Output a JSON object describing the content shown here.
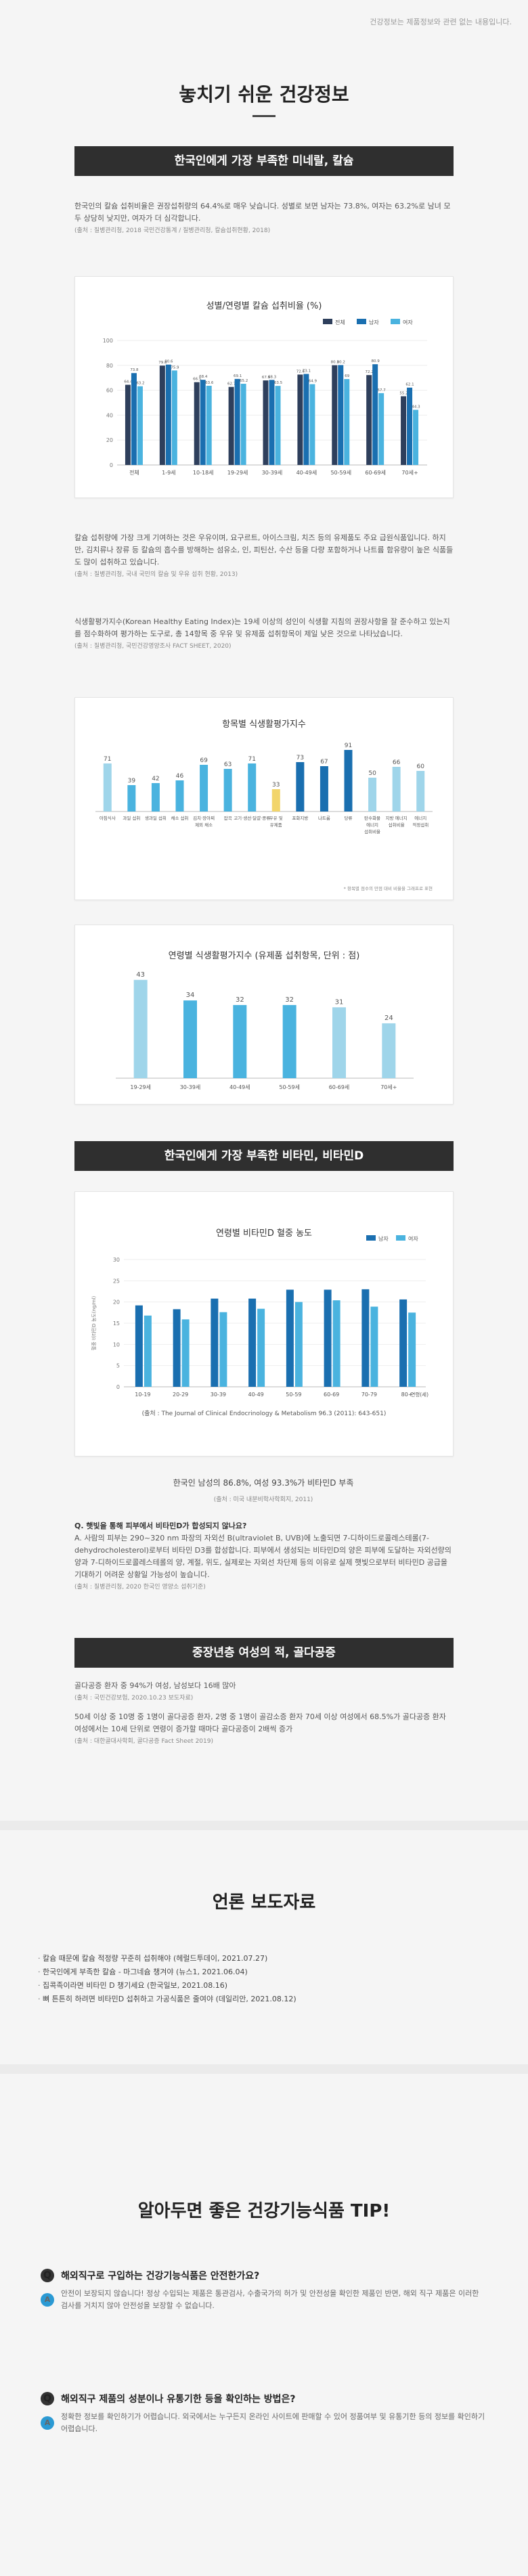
{
  "top_note": "건강정보는 제품정보와 관련 없는 내용입니다.",
  "main_title": "놓치기 쉬운 건강정보",
  "section1": {
    "banner": "한국인에게 가장 부족한 미네랄, 칼슘",
    "p1": "한국인의 칼슘 섭취비율은 권장섭취량의 64.4%로 매우 낮습니다. 성별로 보면 남자는 73.8%, 여자는 63.2%로 남녀 모두 상당히 낮지만, 여자가 더 심각합니다.",
    "p1_src": "(출처 : 질병관리청, 2018 국민건강통계 / 질병관리청, 칼슘섭취현황, 2018)",
    "p2": "칼슘 섭취량에 가장 크게 기여하는 것은 우유이며, 요구르트, 아이스크림, 치즈 등의 유제품도 주요 급원식품입니다. 하지만, 김치류나 장류 등 칼슘의 흡수를 방해하는 섬유소, 인, 피틴산, 수산 등을 다량 포함하거나 나트륨 함유량이 높은 식품들도 많이 섭취하고 있습니다.",
    "p2_src": "(출처 : 질병관리청, 국내 국민의 칼슘 및 우유 섭취 현황, 2013)",
    "p3": "식생활평가지수(Korean Healthy Eating Index)는 19세 이상의 성인이 식생활 지침의 권장사항을 잘 준수하고 있는지를 점수화하여 평가하는 도구로, 총 14항목 중 우유 및 유제품 섭취항목이 제일 낮은 것으로 나타났습니다.",
    "p3_src": "(출처 : 질병관리청, 국민건강영양조사 FACT SHEET, 2020)"
  },
  "chart1": {
    "type": "bar",
    "title": "성별/연령별 칼슘 섭취비율 (%)",
    "categories": [
      "전체",
      "1-9세",
      "10-18세",
      "19-29세",
      "30-39세",
      "40-49세",
      "50-59세",
      "60-69세",
      "70세+"
    ],
    "series": [
      {
        "name": "전체",
        "color": "#2e3f5c",
        "values": [
          64.4,
          79.8,
          66.5,
          62.7,
          67.9,
          72.6,
          80.1,
          72.2,
          55.2
        ]
      },
      {
        "name": "남자",
        "color": "#1a6fb0",
        "values": [
          73.8,
          80.6,
          68.4,
          69.1,
          68.3,
          73.1,
          80.2,
          80.9,
          62.1
        ]
      },
      {
        "name": "여자",
        "color": "#4ab3df",
        "values": [
          63.2,
          75.9,
          63.6,
          65.2,
          63.5,
          64.9,
          69.0,
          57.7,
          44.3
        ]
      }
    ],
    "ylim": [
      0,
      100
    ],
    "yticks": [
      0,
      20,
      40,
      60,
      80,
      100
    ]
  },
  "chart2": {
    "type": "bar",
    "title": "항목별 식생활평가지수",
    "categories": [
      "아침식사",
      "과일 섭취",
      "생과일 섭취",
      "채소 섭취",
      "김치·장아찌 제외 채소",
      "잡곡",
      "고기·생선·달걀·콩류",
      "우유 및 유제품",
      "포화지방",
      "나트륨",
      "당류",
      "탄수화물 에너지 섭취비율",
      "지방 에너지 섭취비율",
      "에너지 적정섭취"
    ],
    "values": [
      71,
      39,
      42,
      46,
      69,
      63,
      71,
      33,
      73,
      67,
      91,
      50,
      66,
      60
    ],
    "colors": [
      "#9fd5ea",
      "#4ab3df",
      "#4ab3df",
      "#4ab3df",
      "#4ab3df",
      "#4ab3df",
      "#4ab3df",
      "#f2d56b",
      "#1a6fb0",
      "#1a6fb0",
      "#1a6fb0",
      "#9fd5ea",
      "#9fd5ea",
      "#9fd5ea"
    ],
    "note": "* 항목별 점수의 만점 대비 비율을 그래프로 표현"
  },
  "chart3": {
    "type": "bar",
    "title": "연령별 식생활평가지수 (유제품 섭취항목, 단위 : 점)",
    "categories": [
      "19-29세",
      "30-39세",
      "40-49세",
      "50-59세",
      "60-69세",
      "70세+"
    ],
    "values": [
      43,
      34,
      32,
      32,
      31,
      24
    ],
    "colors": [
      "#9fd5ea",
      "#4ab3df",
      "#4ab3df",
      "#4ab3df",
      "#9fd5ea",
      "#9fd5ea"
    ]
  },
  "section2": {
    "banner": "한국인에게 가장 부족한 비타민, 비타민D",
    "chart_src": "(출처 : The Journal of Clinical Endocrinology & Metabolism 96.3 (2011): 643-651)",
    "stat": "한국인 남성의 86.8%, 여성 93.3%가 비타민D 부족",
    "stat_src": "(출처 : 미국 내분비학사학회지, 2011)",
    "q": "Q. 햇빛을 통해 피부에서 비타민D가 합성되지 않나요?",
    "a": "A. 사람의 피부는 290~320 nm 파장의 자외선 B(ultraviolet B, UVB)에 노출되면 7-디하이드로콜레스테롤(7-dehydrocholesterol)로부터 비타민 D3를 합성합니다. 피부에서 생성되는 비타민D의 양은 피부에 도달하는 자외선량의 양과 7-디하이드로콜레스테롤의 양, 계절, 위도, 실제로는 자외선 차단제 등의 이유로 실제 햇빛으로부터 비타민D 공급을 기대하기 어려운 상황일 가능성이 높습니다.",
    "a_src": "(출처 : 질병관리청, 2020 한국인 영양소 섭취기준)"
  },
  "chart4": {
    "type": "bar",
    "title": "연령별 비타민D 혈중 농도",
    "categories": [
      "10-19",
      "20-29",
      "30-39",
      "40-49",
      "50-59",
      "60-69",
      "70-79",
      "80+"
    ],
    "series": [
      {
        "name": "남자",
        "color": "#1a6fb0",
        "values": [
          19.2,
          18.3,
          20.8,
          20.8,
          22.9,
          22.9,
          23.0,
          20.6
        ]
      },
      {
        "name": "여자",
        "color": "#4ab3df",
        "values": [
          16.8,
          15.9,
          17.6,
          18.4,
          20.0,
          20.4,
          18.9,
          17.5
        ]
      }
    ],
    "ylabel": "혈중 비타민D 농도(ng/ml)",
    "xlabel": "연령(세)",
    "ylim": [
      0,
      30
    ],
    "yticks": [
      0,
      5,
      10,
      15,
      20,
      25,
      30
    ]
  },
  "section3": {
    "banner": "중장년층 여성의 적, 골다공증",
    "p1": "골다공증 환자 중 94%가 여성, 남성보다 16배 많아",
    "p1_src": "(출처 : 국민건강보험, 2020.10.23 보도자료)",
    "p2": "50세 이상 중 10명 중 1명이 골다공증 환자, 2명 중 1명이 골감소증 환자 70세 이상 여성에서 68.5%가 골다공증 환자 여성에서는 10세 단위로 연령이 증가할 때마다 골다공증이 2배씩 증가",
    "p2_src": "(출처 : 대한골대사학회, 골다공증 Fact Sheet 2019)"
  },
  "press": {
    "title": "언론 보도자료",
    "items": [
      "칼슘 때문에 칼슘 적정량 꾸준히 섭취해야 (헤럴드투데이, 2021.07.27)",
      "한국인에게 부족한 칼슘 - 마그네슘 챙겨야 (뉴스1, 2021.06.04)",
      "집콕족이라면 비타민 D 챙기세요 (한국일보, 2021.08.16)",
      "뼈 튼튼히 하려면 비타민D 섭취하고 가공식품은 줄여야 (데일리안, 2021.08.12)"
    ]
  },
  "tips": {
    "title": "알아두면 좋은 건강기능식품 TIP!",
    "q1": "해외직구로 구입하는 건강기능식품은 안전한가요?",
    "a1": "안전이 보장되지 않습니다! 정상 수입되는 제품은 통관검사, 수출국가의 허가 및 안전성을 확인한 제품인 반면, 해외 직구 제품은 이러한 검사를 거치지 않아 안전성을 보장할 수 없습니다.",
    "q2": "해외직구 제품의 성분이나 유통기한 등을 확인하는 방법은?",
    "a2": "정확한 정보를 확인하기가 어렵습니다. 외국에서는 누구든지 온라인 사이트에 판매할 수 있어 정품여부 및 유통기한 등의 정보를 확인하기 어렵습니다.",
    "q_badge": "Q",
    "a_badge": "A"
  }
}
